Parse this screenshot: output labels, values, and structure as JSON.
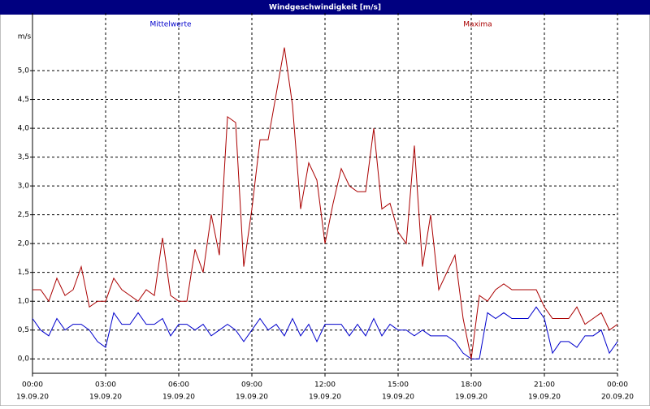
{
  "chart_data": {
    "type": "line",
    "title": "Windgeschwindigkeit [m/s]",
    "ylabel": "m/s",
    "x": [
      0,
      20,
      40,
      60,
      80,
      100,
      120,
      140,
      160,
      180,
      200,
      220,
      240,
      260,
      280,
      300,
      320,
      340,
      360,
      380,
      400,
      420,
      440,
      460,
      480,
      500,
      520,
      540,
      560,
      580,
      600,
      620,
      640,
      660,
      680,
      700,
      720,
      740,
      760,
      780,
      800,
      820,
      840,
      860,
      880,
      900,
      920,
      940,
      960,
      980,
      1000,
      1020,
      1040,
      1060,
      1080,
      1100,
      1120,
      1140,
      1160,
      1180,
      1200,
      1220,
      1240,
      1260,
      1280,
      1300,
      1320,
      1340,
      1360,
      1380,
      1400,
      1420,
      1440
    ],
    "xlim": [
      0,
      1440
    ],
    "xticks": [
      {
        "value": 0,
        "label": "00:00"
      },
      {
        "value": 180,
        "label": "03:00"
      },
      {
        "value": 360,
        "label": "06:00"
      },
      {
        "value": 540,
        "label": "09:00"
      },
      {
        "value": 720,
        "label": "12:00"
      },
      {
        "value": 900,
        "label": "15:00"
      },
      {
        "value": 1080,
        "label": "18:00"
      },
      {
        "value": 1260,
        "label": "21:00"
      },
      {
        "value": 1440,
        "label": "00:00"
      }
    ],
    "xtick_dates": [
      "19.09.20",
      "19.09.20",
      "19.09.20",
      "19.09.20",
      "19.09.20",
      "19.09.20",
      "19.09.20",
      "19.09.20",
      "20.09.20"
    ],
    "ylim": [
      -0.25,
      6.0
    ],
    "yticks": [
      {
        "value": 0,
        "label": "0,0"
      },
      {
        "value": 0.5,
        "label": "0,5"
      },
      {
        "value": 1,
        "label": "1,0"
      },
      {
        "value": 1.5,
        "label": "1,5"
      },
      {
        "value": 2,
        "label": "2,0"
      },
      {
        "value": 2.5,
        "label": "2,5"
      },
      {
        "value": 3,
        "label": "3,0"
      },
      {
        "value": 3.5,
        "label": "3,5"
      },
      {
        "value": 4,
        "label": "4,0"
      },
      {
        "value": 4.5,
        "label": "4,5"
      },
      {
        "value": 5,
        "label": "5,0"
      }
    ],
    "grid": true,
    "series": [
      {
        "name": "Mittelwerte",
        "color": "#0000cc",
        "values": [
          0.7,
          0.5,
          0.4,
          0.7,
          0.5,
          0.6,
          0.6,
          0.5,
          0.3,
          0.2,
          0.8,
          0.6,
          0.6,
          0.8,
          0.6,
          0.6,
          0.7,
          0.4,
          0.6,
          0.6,
          0.5,
          0.6,
          0.4,
          0.5,
          0.6,
          0.5,
          0.3,
          0.5,
          0.7,
          0.5,
          0.6,
          0.4,
          0.7,
          0.4,
          0.6,
          0.3,
          0.6,
          0.6,
          0.6,
          0.4,
          0.6,
          0.4,
          0.7,
          0.4,
          0.6,
          0.5,
          0.5,
          0.4,
          0.5,
          0.4,
          0.4,
          0.4,
          0.3,
          0.1,
          0.0,
          0.0,
          0.8,
          0.7,
          0.8,
          0.7,
          0.7,
          0.7,
          0.9,
          0.7,
          0.1,
          0.3,
          0.3,
          0.2,
          0.4,
          0.4,
          0.5,
          0.1,
          0.3
        ]
      },
      {
        "name": "Maxima",
        "color": "#aa0000",
        "values": [
          1.2,
          1.2,
          1.0,
          1.4,
          1.1,
          1.2,
          1.6,
          0.9,
          1.0,
          1.0,
          1.4,
          1.2,
          1.1,
          1.0,
          1.2,
          1.1,
          2.1,
          1.1,
          1.0,
          1.0,
          1.9,
          1.5,
          2.5,
          1.8,
          4.2,
          4.1,
          1.6,
          2.6,
          3.8,
          3.8,
          4.6,
          5.4,
          4.4,
          2.6,
          3.4,
          3.1,
          2.0,
          2.7,
          3.3,
          3.0,
          2.9,
          2.9,
          4.0,
          2.6,
          2.7,
          2.2,
          2.0,
          3.7,
          1.6,
          2.5,
          1.2,
          1.5,
          1.8,
          0.7,
          0.0,
          1.1,
          1.0,
          1.2,
          1.3,
          1.2,
          1.2,
          1.2,
          1.2,
          0.9,
          0.7,
          0.7,
          0.7,
          0.9,
          0.6,
          0.7,
          0.8,
          0.5,
          0.6
        ]
      }
    ]
  }
}
